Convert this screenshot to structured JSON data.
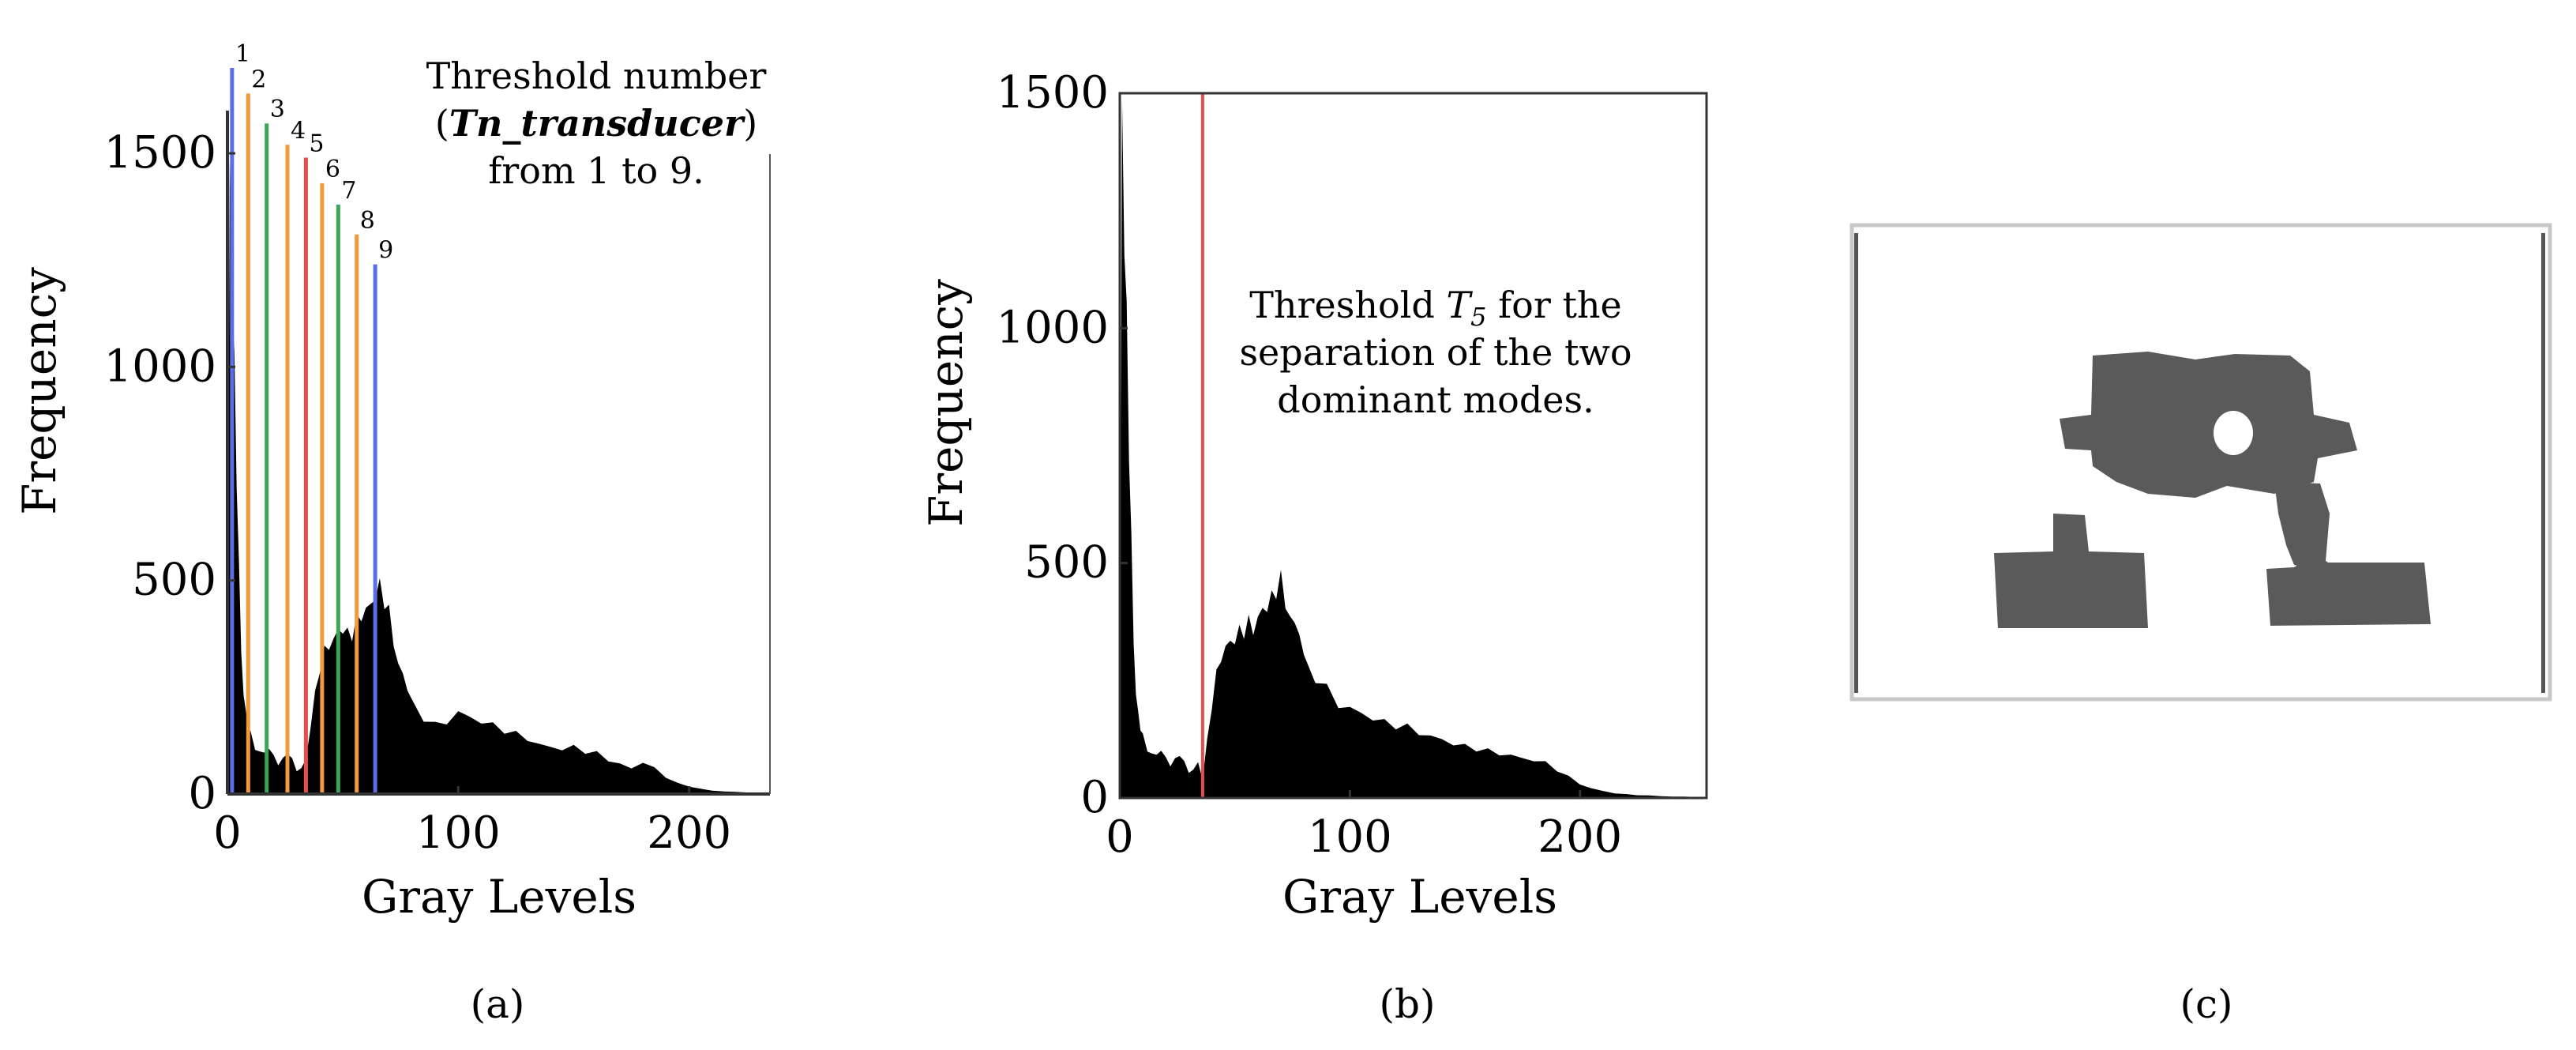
{
  "panels": {
    "a": {
      "caption": "(a)"
    },
    "b": {
      "caption": "(b)"
    },
    "c": {
      "caption": "(c)"
    }
  },
  "chart_data": [
    {
      "panel": "a",
      "type": "area",
      "xlabel": "Gray Levels",
      "ylabel": "Frequency",
      "xlim": [
        0,
        235
      ],
      "ylim": [
        0,
        1600
      ],
      "xticks": [
        0,
        100,
        200
      ],
      "yticks": [
        0,
        500,
        1000,
        1500
      ],
      "series": [
        {
          "x": [
            0,
            1,
            2,
            3,
            4,
            5,
            6,
            7,
            8,
            9,
            10,
            12,
            14,
            16,
            18,
            20,
            22,
            24,
            26,
            28,
            30,
            32,
            34,
            36,
            38,
            40,
            42,
            44,
            46,
            48,
            50,
            52,
            54,
            56,
            58,
            60,
            62,
            64,
            66,
            68,
            70,
            72,
            74,
            76,
            78,
            80,
            85,
            90,
            95,
            100,
            105,
            110,
            115,
            120,
            125,
            130,
            135,
            140,
            145,
            150,
            155,
            160,
            165,
            170,
            175,
            180,
            185,
            190,
            195,
            200,
            205,
            210,
            215,
            220,
            225,
            230,
            235
          ],
          "y": [
            80,
            1450,
            1200,
            980,
            760,
            520,
            340,
            230,
            190,
            160,
            140,
            110,
            95,
            100,
            105,
            90,
            70,
            80,
            100,
            80,
            55,
            60,
            80,
            160,
            230,
            300,
            330,
            350,
            360,
            380,
            390,
            370,
            380,
            400,
            420,
            430,
            440,
            470,
            480,
            460,
            420,
            360,
            300,
            280,
            250,
            210,
            180,
            160,
            170,
            190,
            180,
            170,
            160,
            150,
            140,
            130,
            115,
            110,
            105,
            110,
            100,
            95,
            80,
            70,
            60,
            75,
            60,
            40,
            25,
            18,
            12,
            8,
            6,
            5,
            4,
            3,
            2
          ]
        }
      ],
      "thresholds": {
        "label": "Tn_transducer",
        "items": [
          {
            "n": "1",
            "x": 2,
            "y": 1700,
            "color": "#5b6ee8"
          },
          {
            "n": "2",
            "x": 9,
            "y": 1640,
            "color": "#f29a3a"
          },
          {
            "n": "3",
            "x": 17,
            "y": 1570,
            "color": "#3aa655"
          },
          {
            "n": "4",
            "x": 26,
            "y": 1520,
            "color": "#f29a3a"
          },
          {
            "n": "5",
            "x": 34,
            "y": 1490,
            "color": "#e84c4c"
          },
          {
            "n": "6",
            "x": 41,
            "y": 1430,
            "color": "#f29a3a"
          },
          {
            "n": "7",
            "x": 48,
            "y": 1380,
            "color": "#3aa655"
          },
          {
            "n": "8",
            "x": 56,
            "y": 1310,
            "color": "#f29a3a"
          },
          {
            "n": "9",
            "x": 64,
            "y": 1240,
            "color": "#5b6ee8"
          }
        ]
      },
      "annotation": {
        "line1": "Threshold number",
        "line2_open": "(",
        "line2_emph": "Tn_transducer",
        "line2_close": ")",
        "line3": "from 1 to 9."
      }
    },
    {
      "panel": "b",
      "type": "area",
      "xlabel": "Gray Levels",
      "ylabel": "Frequency",
      "xlim": [
        0,
        255
      ],
      "ylim": [
        0,
        1500
      ],
      "xticks": [
        0,
        100,
        200
      ],
      "yticks": [
        0,
        500,
        1000,
        1500
      ],
      "series": [
        {
          "x": [
            0,
            1,
            2,
            3,
            4,
            5,
            6,
            7,
            8,
            9,
            10,
            12,
            14,
            16,
            18,
            20,
            22,
            24,
            26,
            28,
            30,
            32,
            34,
            36,
            38,
            40,
            42,
            44,
            46,
            48,
            50,
            52,
            54,
            56,
            58,
            60,
            62,
            64,
            66,
            68,
            70,
            72,
            74,
            76,
            78,
            80,
            85,
            90,
            95,
            100,
            105,
            110,
            115,
            120,
            125,
            130,
            135,
            140,
            145,
            150,
            155,
            160,
            165,
            170,
            175,
            180,
            185,
            190,
            195,
            200,
            205,
            210,
            215,
            220,
            225,
            230,
            235,
            240,
            245,
            250,
            255
          ],
          "y": [
            60,
            1450,
            1210,
            1000,
            760,
            540,
            340,
            220,
            180,
            150,
            130,
            105,
            90,
            95,
            100,
            85,
            70,
            80,
            95,
            75,
            55,
            60,
            75,
            40,
            120,
            200,
            260,
            300,
            320,
            330,
            340,
            350,
            360,
            370,
            360,
            380,
            400,
            410,
            420,
            450,
            460,
            420,
            380,
            370,
            360,
            290,
            260,
            230,
            200,
            190,
            180,
            170,
            160,
            155,
            150,
            140,
            130,
            125,
            115,
            110,
            105,
            100,
            95,
            90,
            85,
            80,
            75,
            60,
            45,
            30,
            20,
            15,
            10,
            8,
            6,
            5,
            4,
            3,
            3,
            2,
            2
          ]
        }
      ],
      "threshold": {
        "x": 36,
        "color": "#e84c4c"
      },
      "annotation": {
        "line1_pre": "Threshold ",
        "line1_T": "T",
        "line1_sub": "5",
        "line1_post": " for the",
        "line2": "separation of the two",
        "line3": "dominant modes."
      }
    }
  ],
  "colors": {
    "histogram": "#000000",
    "segment_gray": "#5a5a5a",
    "frame_gray": "#c8c8c8"
  }
}
